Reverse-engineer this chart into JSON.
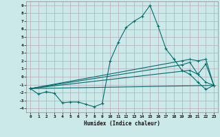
{
  "xlabel": "Humidex (Indice chaleur)",
  "xlim": [
    -0.5,
    23.5
  ],
  "ylim": [
    -4.5,
    9.5
  ],
  "xticks": [
    0,
    1,
    2,
    3,
    4,
    5,
    6,
    7,
    8,
    9,
    10,
    11,
    12,
    13,
    14,
    15,
    16,
    17,
    18,
    19,
    20,
    21,
    22,
    23
  ],
  "yticks": [
    -4,
    -3,
    -2,
    -1,
    0,
    1,
    2,
    3,
    4,
    5,
    6,
    7,
    8,
    9
  ],
  "bg_color": "#cce9e9",
  "grid_color": "#b8a8b8",
  "line_color": "#006b6b",
  "main_line": {
    "x": [
      0,
      1,
      2,
      3,
      4,
      5,
      6,
      7,
      8,
      9,
      10,
      11,
      12,
      13,
      14,
      15,
      16,
      17,
      18,
      19,
      20,
      21,
      22,
      23
    ],
    "y": [
      -1.5,
      -2.2,
      -1.9,
      -2.1,
      -3.3,
      -3.2,
      -3.2,
      -3.5,
      -3.8,
      -3.4,
      2.0,
      4.3,
      6.2,
      7.0,
      7.6,
      9.0,
      6.4,
      3.5,
      2.2,
      0.8,
      0.3,
      -0.7,
      -1.6,
      -1.1
    ]
  },
  "fan_lines": [
    {
      "x": [
        0,
        23
      ],
      "y": [
        -1.5,
        -1.1
      ]
    },
    {
      "x": [
        0,
        20,
        21,
        22,
        23
      ],
      "y": [
        -1.5,
        0.8,
        0.3,
        -0.7,
        -1.1
      ]
    },
    {
      "x": [
        0,
        19,
        20,
        21,
        22,
        23
      ],
      "y": [
        -1.5,
        1.5,
        1.8,
        0.3,
        1.6,
        -1.1
      ]
    },
    {
      "x": [
        0,
        19,
        20,
        21,
        22,
        23
      ],
      "y": [
        -1.5,
        2.0,
        2.2,
        2.0,
        2.2,
        -1.1
      ]
    }
  ]
}
